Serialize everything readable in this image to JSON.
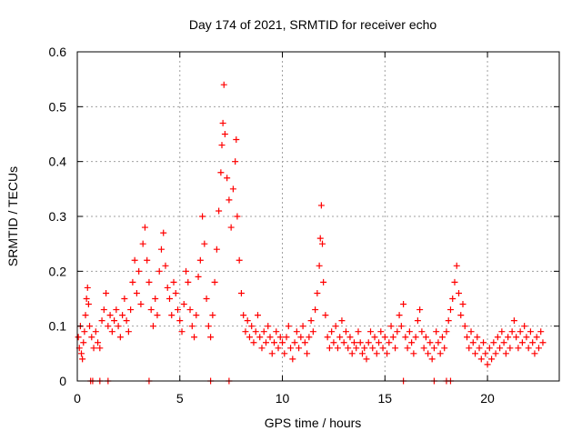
{
  "chart_data": {
    "type": "scatter",
    "title": "Day 174 of 2021, SRMTID for receiver echo",
    "xlabel": "GPS time / hours",
    "ylabel": "SRMTID / TECUs",
    "xlim": [
      0,
      23.5
    ],
    "ylim": [
      0,
      0.6
    ],
    "xticks": [
      0,
      5,
      10,
      15,
      20
    ],
    "xtick_labels": [
      "0",
      "5",
      "10",
      "15",
      "20"
    ],
    "yticks": [
      0,
      0.1,
      0.2,
      0.3,
      0.4,
      0.5,
      0.6
    ],
    "ytick_labels": [
      "0",
      "0.1",
      "0.2",
      "0.3",
      "0.4",
      "0.5",
      "0.6"
    ],
    "grid": true,
    "marker": "+",
    "color": "#ff0000",
    "series": [
      {
        "name": "SRMTID",
        "points": [
          [
            0.05,
            0.08
          ],
          [
            0.1,
            0.06
          ],
          [
            0.15,
            0.1
          ],
          [
            0.2,
            0.05
          ],
          [
            0.25,
            0.04
          ],
          [
            0.3,
            0.07
          ],
          [
            0.35,
            0.09
          ],
          [
            0.4,
            0.12
          ],
          [
            0.45,
            0.15
          ],
          [
            0.5,
            0.17
          ],
          [
            0.55,
            0.14
          ],
          [
            0.6,
            0.1
          ],
          [
            0.7,
            0.08
          ],
          [
            0.8,
            0.06
          ],
          [
            0.9,
            0.09
          ],
          [
            1.0,
            0.07
          ],
          [
            1.1,
            0.06
          ],
          [
            1.2,
            0.11
          ],
          [
            1.3,
            0.13
          ],
          [
            1.4,
            0.16
          ],
          [
            1.5,
            0.1
          ],
          [
            1.6,
            0.12
          ],
          [
            1.7,
            0.09
          ],
          [
            1.8,
            0.11
          ],
          [
            1.9,
            0.13
          ],
          [
            2.0,
            0.1
          ],
          [
            2.1,
            0.08
          ],
          [
            2.2,
            0.12
          ],
          [
            2.3,
            0.15
          ],
          [
            2.4,
            0.11
          ],
          [
            2.5,
            0.09
          ],
          [
            2.6,
            0.13
          ],
          [
            2.7,
            0.18
          ],
          [
            2.8,
            0.22
          ],
          [
            2.9,
            0.16
          ],
          [
            3.0,
            0.2
          ],
          [
            3.1,
            0.14
          ],
          [
            3.2,
            0.25
          ],
          [
            3.3,
            0.28
          ],
          [
            3.4,
            0.22
          ],
          [
            3.5,
            0.18
          ],
          [
            3.6,
            0.13
          ],
          [
            3.7,
            0.1
          ],
          [
            3.8,
            0.15
          ],
          [
            3.9,
            0.12
          ],
          [
            4.0,
            0.2
          ],
          [
            4.1,
            0.24
          ],
          [
            4.2,
            0.27
          ],
          [
            4.3,
            0.21
          ],
          [
            4.4,
            0.17
          ],
          [
            4.5,
            0.15
          ],
          [
            4.6,
            0.12
          ],
          [
            4.7,
            0.18
          ],
          [
            4.8,
            0.16
          ],
          [
            4.9,
            0.13
          ],
          [
            5.0,
            0.11
          ],
          [
            5.1,
            0.09
          ],
          [
            5.2,
            0.14
          ],
          [
            5.3,
            0.2
          ],
          [
            5.4,
            0.18
          ],
          [
            5.5,
            0.13
          ],
          [
            5.6,
            0.1
          ],
          [
            5.7,
            0.08
          ],
          [
            5.8,
            0.12
          ],
          [
            5.9,
            0.19
          ],
          [
            6.0,
            0.22
          ],
          [
            6.1,
            0.3
          ],
          [
            6.2,
            0.25
          ],
          [
            6.3,
            0.15
          ],
          [
            6.4,
            0.1
          ],
          [
            6.5,
            0.08
          ],
          [
            6.6,
            0.12
          ],
          [
            6.7,
            0.18
          ],
          [
            6.8,
            0.24
          ],
          [
            6.9,
            0.31
          ],
          [
            7.0,
            0.38
          ],
          [
            7.05,
            0.43
          ],
          [
            7.1,
            0.47
          ],
          [
            7.15,
            0.54
          ],
          [
            7.2,
            0.45
          ],
          [
            7.3,
            0.37
          ],
          [
            7.4,
            0.33
          ],
          [
            7.5,
            0.28
          ],
          [
            7.6,
            0.35
          ],
          [
            7.7,
            0.4
          ],
          [
            7.75,
            0.44
          ],
          [
            7.8,
            0.3
          ],
          [
            7.9,
            0.22
          ],
          [
            8.0,
            0.16
          ],
          [
            8.1,
            0.12
          ],
          [
            8.2,
            0.09
          ],
          [
            8.3,
            0.11
          ],
          [
            8.4,
            0.08
          ],
          [
            8.5,
            0.1
          ],
          [
            8.6,
            0.07
          ],
          [
            8.7,
            0.09
          ],
          [
            8.8,
            0.12
          ],
          [
            8.9,
            0.08
          ],
          [
            9.0,
            0.06
          ],
          [
            9.1,
            0.09
          ],
          [
            9.2,
            0.07
          ],
          [
            9.3,
            0.1
          ],
          [
            9.4,
            0.08
          ],
          [
            9.5,
            0.05
          ],
          [
            9.6,
            0.07
          ],
          [
            9.7,
            0.09
          ],
          [
            9.8,
            0.06
          ],
          [
            9.9,
            0.08
          ],
          [
            10.0,
            0.07
          ],
          [
            10.1,
            0.05
          ],
          [
            10.2,
            0.08
          ],
          [
            10.3,
            0.1
          ],
          [
            10.4,
            0.06
          ],
          [
            10.5,
            0.04
          ],
          [
            10.6,
            0.07
          ],
          [
            10.7,
            0.09
          ],
          [
            10.8,
            0.06
          ],
          [
            10.9,
            0.08
          ],
          [
            11.0,
            0.1
          ],
          [
            11.1,
            0.07
          ],
          [
            11.2,
            0.05
          ],
          [
            11.3,
            0.08
          ],
          [
            11.4,
            0.11
          ],
          [
            11.5,
            0.09
          ],
          [
            11.6,
            0.13
          ],
          [
            11.7,
            0.16
          ],
          [
            11.8,
            0.21
          ],
          [
            11.85,
            0.26
          ],
          [
            11.9,
            0.32
          ],
          [
            11.95,
            0.25
          ],
          [
            12.0,
            0.18
          ],
          [
            12.1,
            0.12
          ],
          [
            12.2,
            0.08
          ],
          [
            12.3,
            0.06
          ],
          [
            12.4,
            0.09
          ],
          [
            12.5,
            0.07
          ],
          [
            12.6,
            0.1
          ],
          [
            12.7,
            0.06
          ],
          [
            12.8,
            0.08
          ],
          [
            12.9,
            0.11
          ],
          [
            13.0,
            0.07
          ],
          [
            13.1,
            0.09
          ],
          [
            13.2,
            0.06
          ],
          [
            13.3,
            0.08
          ],
          [
            13.4,
            0.05
          ],
          [
            13.5,
            0.07
          ],
          [
            13.6,
            0.06
          ],
          [
            13.7,
            0.09
          ],
          [
            13.8,
            0.07
          ],
          [
            13.9,
            0.05
          ],
          [
            14.0,
            0.06
          ],
          [
            14.1,
            0.04
          ],
          [
            14.2,
            0.07
          ],
          [
            14.3,
            0.09
          ],
          [
            14.4,
            0.06
          ],
          [
            14.5,
            0.08
          ],
          [
            14.6,
            0.05
          ],
          [
            14.7,
            0.07
          ],
          [
            14.8,
            0.09
          ],
          [
            14.9,
            0.06
          ],
          [
            15.0,
            0.08
          ],
          [
            15.1,
            0.05
          ],
          [
            15.2,
            0.07
          ],
          [
            15.3,
            0.1
          ],
          [
            15.4,
            0.08
          ],
          [
            15.5,
            0.06
          ],
          [
            15.6,
            0.09
          ],
          [
            15.7,
            0.12
          ],
          [
            15.8,
            0.1
          ],
          [
            15.9,
            0.14
          ],
          [
            16.0,
            0.08
          ],
          [
            16.1,
            0.06
          ],
          [
            16.2,
            0.09
          ],
          [
            16.3,
            0.07
          ],
          [
            16.4,
            0.05
          ],
          [
            16.5,
            0.08
          ],
          [
            16.6,
            0.11
          ],
          [
            16.7,
            0.13
          ],
          [
            16.8,
            0.09
          ],
          [
            16.9,
            0.06
          ],
          [
            17.0,
            0.08
          ],
          [
            17.1,
            0.05
          ],
          [
            17.2,
            0.07
          ],
          [
            17.3,
            0.04
          ],
          [
            17.4,
            0.06
          ],
          [
            17.5,
            0.09
          ],
          [
            17.6,
            0.07
          ],
          [
            17.7,
            0.05
          ],
          [
            17.8,
            0.08
          ],
          [
            17.9,
            0.06
          ],
          [
            18.0,
            0.09
          ],
          [
            18.1,
            0.11
          ],
          [
            18.2,
            0.13
          ],
          [
            18.3,
            0.15
          ],
          [
            18.4,
            0.18
          ],
          [
            18.5,
            0.21
          ],
          [
            18.6,
            0.16
          ],
          [
            18.7,
            0.12
          ],
          [
            18.8,
            0.14
          ],
          [
            18.9,
            0.1
          ],
          [
            19.0,
            0.08
          ],
          [
            19.1,
            0.06
          ],
          [
            19.2,
            0.09
          ],
          [
            19.3,
            0.07
          ],
          [
            19.4,
            0.05
          ],
          [
            19.5,
            0.08
          ],
          [
            19.6,
            0.06
          ],
          [
            19.7,
            0.04
          ],
          [
            19.8,
            0.07
          ],
          [
            19.9,
            0.05
          ],
          [
            20.0,
            0.03
          ],
          [
            20.1,
            0.06
          ],
          [
            20.2,
            0.04
          ],
          [
            20.3,
            0.07
          ],
          [
            20.4,
            0.05
          ],
          [
            20.5,
            0.08
          ],
          [
            20.6,
            0.06
          ],
          [
            20.7,
            0.09
          ],
          [
            20.8,
            0.07
          ],
          [
            20.9,
            0.05
          ],
          [
            21.0,
            0.08
          ],
          [
            21.1,
            0.06
          ],
          [
            21.2,
            0.09
          ],
          [
            21.3,
            0.11
          ],
          [
            21.4,
            0.08
          ],
          [
            21.5,
            0.06
          ],
          [
            21.6,
            0.09
          ],
          [
            21.7,
            0.07
          ],
          [
            21.8,
            0.1
          ],
          [
            21.9,
            0.08
          ],
          [
            22.0,
            0.06
          ],
          [
            22.1,
            0.09
          ],
          [
            22.2,
            0.07
          ],
          [
            22.3,
            0.05
          ],
          [
            22.4,
            0.08
          ],
          [
            22.5,
            0.06
          ],
          [
            22.6,
            0.09
          ],
          [
            22.7,
            0.07
          ]
        ]
      },
      {
        "name": "zero-level markers",
        "points": [
          [
            0.65,
            0
          ],
          [
            0.75,
            0
          ],
          [
            1.1,
            0
          ],
          [
            1.5,
            0
          ],
          [
            3.5,
            0
          ],
          [
            6.5,
            0
          ],
          [
            7.4,
            0
          ],
          [
            15.9,
            0
          ],
          [
            17.4,
            0
          ],
          [
            18.0,
            0
          ],
          [
            18.2,
            0
          ]
        ]
      }
    ]
  }
}
